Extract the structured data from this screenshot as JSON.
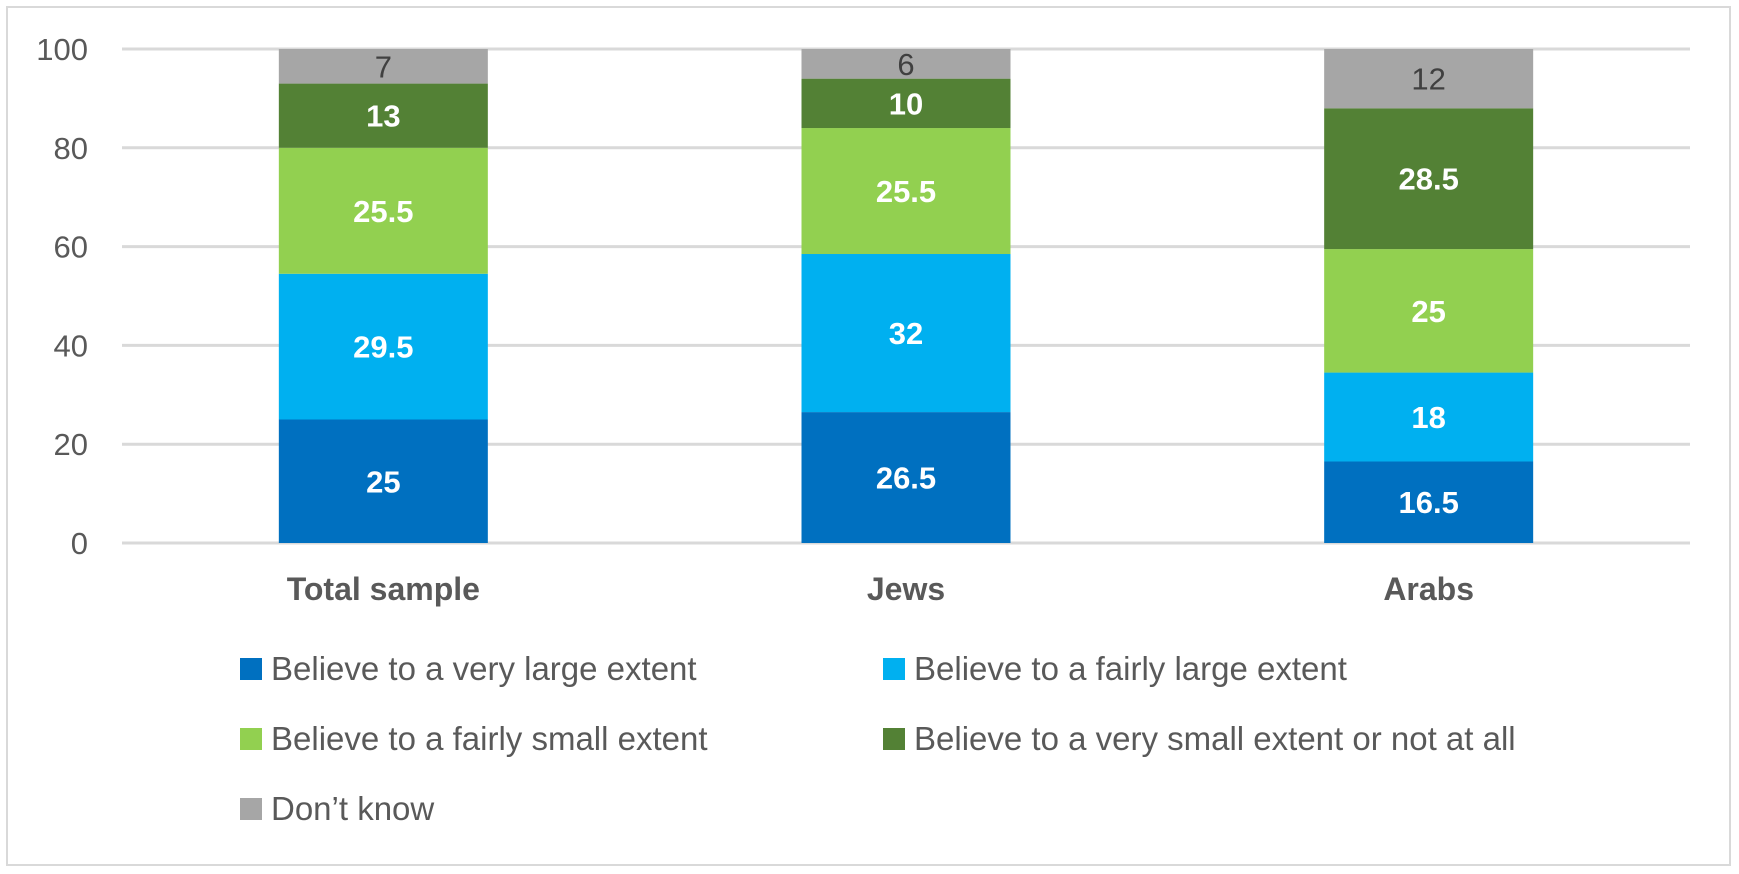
{
  "chart_data": {
    "type": "bar",
    "stacked": true,
    "categories": [
      "Total sample",
      "Jews",
      "Arabs"
    ],
    "series": [
      {
        "name": "Believe to a very large extent",
        "color": "#0070c0",
        "label_color": "#ffffff",
        "values": [
          25,
          26.5,
          16.5
        ]
      },
      {
        "name": "Believe to a fairly large extent",
        "color": "#00b0f0",
        "label_color": "#ffffff",
        "values": [
          29.5,
          32,
          18
        ]
      },
      {
        "name": "Believe to a fairly small extent",
        "color": "#92d050",
        "label_color": "#ffffff",
        "values": [
          25.5,
          25.5,
          25
        ]
      },
      {
        "name": "Believe to a very small extent or not at all",
        "color": "#538135",
        "label_color": "#ffffff",
        "values": [
          13,
          10,
          28.5
        ]
      },
      {
        "name": "Don’t know",
        "color": "#a6a6a6",
        "label_color": "#404040",
        "values": [
          7,
          6,
          12
        ]
      }
    ],
    "yticks": [
      0,
      20,
      40,
      60,
      80,
      100
    ],
    "ylim": [
      0,
      100
    ],
    "grid": true,
    "legend_position": "bottom",
    "title": "",
    "xlabel": "",
    "ylabel": ""
  }
}
